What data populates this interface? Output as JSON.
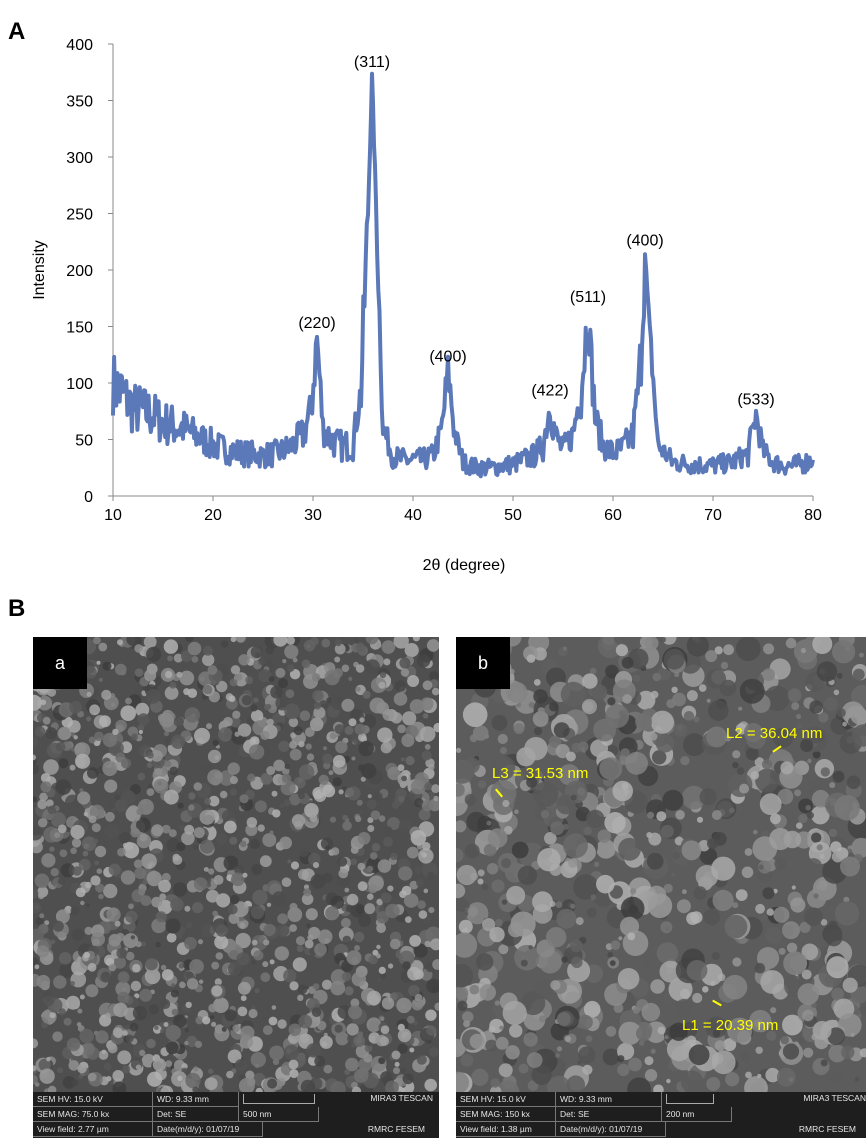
{
  "panel_a": {
    "letter": "A"
  },
  "panel_b": {
    "letter": "B"
  },
  "chart_data": {
    "type": "line",
    "title": "",
    "xlabel": "2θ (degree)",
    "ylabel": "Intensity",
    "xlim": [
      10,
      80
    ],
    "ylim": [
      0,
      400
    ],
    "xticks": [
      10,
      20,
      30,
      40,
      50,
      60,
      70,
      80
    ],
    "yticks": [
      0,
      50,
      100,
      150,
      200,
      250,
      300,
      350,
      400
    ],
    "grid": false,
    "line_color": "#5b79b8",
    "series": [
      {
        "x": [
          10,
          11,
          12,
          13,
          14,
          15,
          16,
          17,
          18,
          19,
          20,
          21,
          22,
          23,
          24,
          25,
          26,
          27,
          28,
          29,
          29.8,
          30.4,
          31,
          32,
          33,
          34,
          34.8,
          35.5,
          35.9,
          36.3,
          37,
          38,
          39,
          40,
          41,
          42,
          42.9,
          43.5,
          44.2,
          45,
          46,
          47,
          48,
          49,
          50,
          51,
          52,
          53,
          53.7,
          54.2,
          55,
          56,
          56.8,
          57.5,
          58.2,
          59,
          60,
          61,
          62,
          62.7,
          63.2,
          63.8,
          64.5,
          66,
          68,
          70,
          72,
          73.5,
          74.3,
          75,
          76,
          77,
          78,
          79,
          80
        ],
        "y": [
          100,
          90,
          78,
          75,
          72,
          65,
          62,
          60,
          55,
          50,
          45,
          42,
          40,
          38,
          37,
          36,
          37,
          40,
          45,
          55,
          75,
          140,
          60,
          48,
          44,
          46,
          95,
          250,
          370,
          260,
          60,
          35,
          32,
          32,
          32,
          36,
          60,
          110,
          55,
          30,
          26,
          25,
          25,
          27,
          28,
          32,
          35,
          45,
          80,
          55,
          40,
          55,
          95,
          163,
          70,
          45,
          38,
          42,
          55,
          110,
          213,
          130,
          45,
          30,
          28,
          27,
          30,
          38,
          72,
          40,
          30,
          27,
          27,
          29,
          32
        ]
      }
    ],
    "annotations": [
      {
        "label": "(220)",
        "x": 30.4,
        "y": 140
      },
      {
        "label": "(311)",
        "x": 35.9,
        "y": 371
      },
      {
        "label": "(400)",
        "x": 43.5,
        "y": 110
      },
      {
        "label": "(422)",
        "x": 53.7,
        "y": 80
      },
      {
        "label": "(511)",
        "x": 57.5,
        "y": 163
      },
      {
        "label": "(400)",
        "x": 63.2,
        "y": 213
      },
      {
        "label": "(533)",
        "x": 74.3,
        "y": 72
      }
    ]
  },
  "sem_images": [
    {
      "tag": "a",
      "info": {
        "hv": "SEM HV: 15.0 kV",
        "wd": "WD: 9.33 mm",
        "mag": "SEM MAG: 75.0 kx",
        "det": "Det: SE",
        "scale": "500 nm",
        "view_field": "View field: 2.77 µm",
        "date": "Date(m/d/y): 01/07/19",
        "brand_top": "MIRA3 TESCAN",
        "brand_bottom": "RMRC FESEM"
      },
      "measurements": []
    },
    {
      "tag": "b",
      "info": {
        "hv": "SEM HV: 15.0 kV",
        "wd": "WD: 9.33 mm",
        "mag": "SEM MAG: 150 kx",
        "det": "Det: SE",
        "scale": "200 nm",
        "view_field": "View field: 1.38 µm",
        "date": "Date(m/d/y): 01/07/19",
        "brand_top": "MIRA3 TESCAN",
        "brand_bottom": "RMRC FESEM"
      },
      "measurements": [
        {
          "label": "L2 = 36.04 nm"
        },
        {
          "label": "L3 = 31.53 nm"
        },
        {
          "label": "L1 = 20.39 nm"
        }
      ]
    }
  ],
  "colors": {
    "sem_background": "#555555",
    "measurement": "#ffff00",
    "info_bar": "#1e1e1e"
  }
}
